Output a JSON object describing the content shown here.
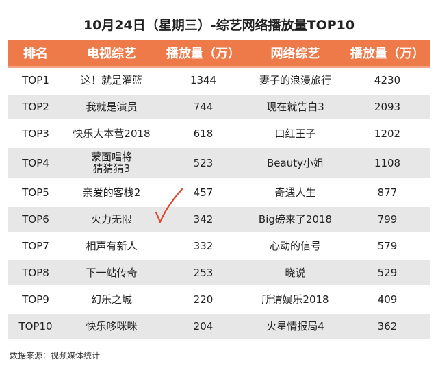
{
  "title": "10月24日（星期三）-综艺网络播放量TOP10",
  "headers": [
    "排名",
    "电视综艺",
    "播放量（万）",
    "网络综艺",
    "播放量（万）"
  ],
  "rows": [
    {
      "rank": "TOP1",
      "tv": "这！就是灌篮",
      "tv_views": "1344",
      "web": "妻子的浪漫旅行",
      "web_views": "4230"
    },
    {
      "rank": "TOP2",
      "tv": "我就是演员",
      "tv_views": "744",
      "web": "现在就告白3",
      "web_views": "2093"
    },
    {
      "rank": "TOP3",
      "tv": "快乐大本营2018",
      "tv_views": "618",
      "web": "口红王子",
      "web_views": "1202"
    },
    {
      "rank": "TOP4",
      "tv_line1": "蒙面唱将",
      "tv_line2": "猜猜猜3",
      "tv_views": "523",
      "web": "Beauty小姐",
      "web_views": "1108"
    },
    {
      "rank": "TOP5",
      "tv": "亲爱的客栈2",
      "tv_views": "457",
      "web": "奇遇人生",
      "web_views": "877"
    },
    {
      "rank": "TOP6",
      "tv": "火力无限",
      "tv_views": "342",
      "web": "Big磅来了2018",
      "web_views": "799"
    },
    {
      "rank": "TOP7",
      "tv": "相声有新人",
      "tv_views": "332",
      "web": "心动的信号",
      "web_views": "579"
    },
    {
      "rank": "TOP8",
      "tv": "下一站传奇",
      "tv_views": "253",
      "web": "晓说",
      "web_views": "529"
    },
    {
      "rank": "TOP9",
      "tv": "幻乐之城",
      "tv_views": "220",
      "web": "所谓娱乐2018",
      "web_views": "409"
    },
    {
      "rank": "TOP10",
      "tv": "快乐哆咪咪",
      "tv_views": "204",
      "web": "火星情报局4",
      "web_views": "362"
    }
  ],
  "source": "数据来源：视频媒体统计",
  "colors": {
    "header_bg": "#ee7a4a",
    "stripe": "#e7e7e7",
    "check": "#e0452a"
  },
  "annotation_icon": "checkmark-icon"
}
